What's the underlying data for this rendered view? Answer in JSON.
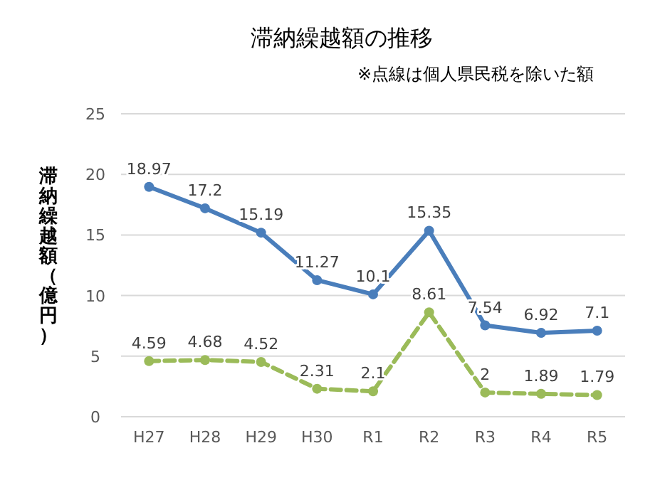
{
  "chart_data": {
    "type": "line",
    "title": "滞納繰越額の推移",
    "subtitle": "※点線は個人県民税を除いた額",
    "ylabel": "滞納繰越額（億円）",
    "categories": [
      "H27",
      "H28",
      "H29",
      "H30",
      "R1",
      "R2",
      "R3",
      "R4",
      "R5"
    ],
    "series": [
      {
        "color": "#4a7ebb",
        "line_style": "solid",
        "values": [
          18.97,
          17.2,
          15.19,
          11.27,
          10.1,
          15.35,
          7.54,
          6.92,
          7.1
        ]
      },
      {
        "color": "#9bbb59",
        "line_style": "dashed",
        "values": [
          4.59,
          4.68,
          4.52,
          2.31,
          2.1,
          8.61,
          2,
          1.89,
          1.79
        ]
      }
    ],
    "ylim": [
      0,
      25
    ],
    "yticks": [
      0,
      5,
      10,
      15,
      20,
      25
    ],
    "grid": "y",
    "marker": "circle",
    "data_labels": true
  }
}
